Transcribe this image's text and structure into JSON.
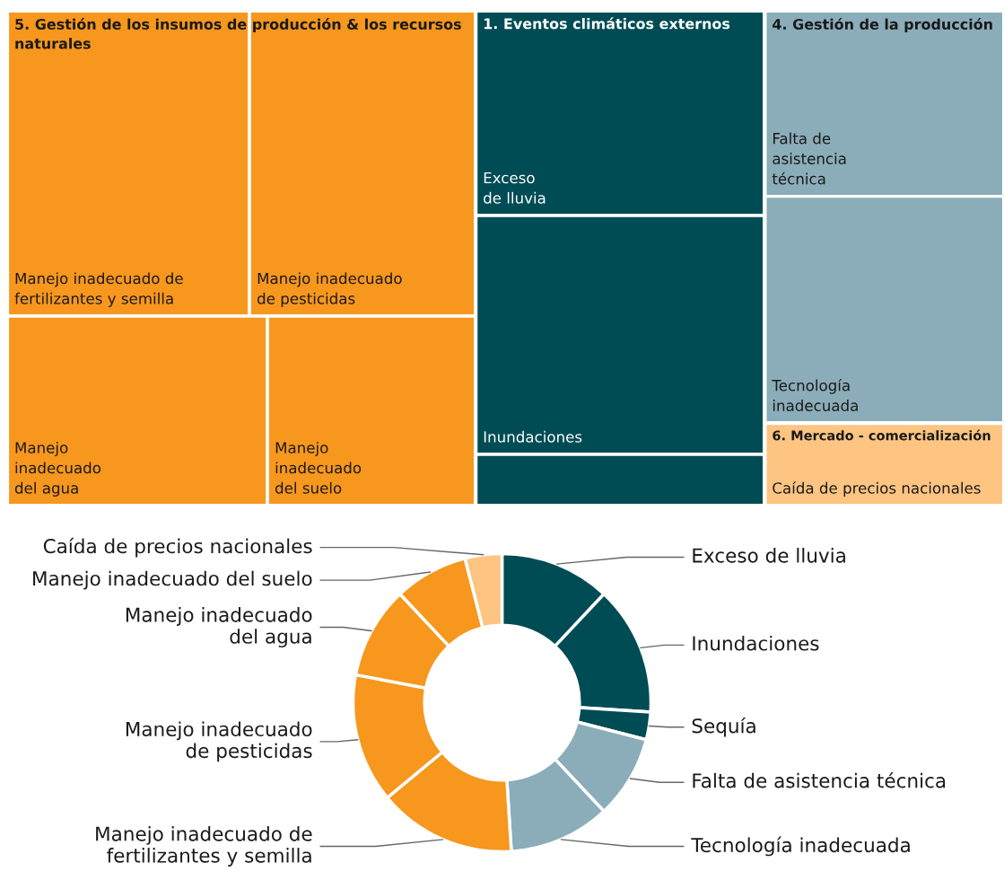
{
  "chart_data": [
    {
      "type": "other",
      "categories": [
        "Exceso\nde lluvia",
        "Inundaciones",
        null,
        "Falta de\nasistencia\ntécnica",
        "Tecnología\ninadecuada",
        "Manejo inadecuado de\nfertilizantes y semilla",
        "Manejo inadecuado\nde pesticidas",
        "Manejo\ninadecuado\ndel agua",
        "Manejo\ninadecuado\ndel suelo",
        "Caída de precios nacionales"
      ],
      "colors": [
        "#004c55",
        "#004c55",
        "#004c55",
        "#8aadb9",
        "#8aadb9",
        "#f7971e",
        "#f7971e",
        "#f7971e",
        "#f7971e",
        "#fdc482"
      ],
      "annotations": [
        "1. Eventos climáticos externos",
        "4. Gestión de la producción",
        "5. Gestión de los insumos de producción & los recursos\nnaturales",
        "6. Mercado - comercialización"
      ]
    },
    {
      "type": "donut",
      "categories": [
        "Exceso de lluvia",
        "Inundaciones",
        "Sequía",
        "Falta de asistencia técnica",
        "Tecnología inadecuada",
        "Manejo inadecuado de\nfertilizantes y semilla",
        "Manejo inadecuado\nde pesticidas",
        "Manejo inadecuado\ndel agua",
        "Manejo inadecuado del suelo",
        "Caída de precios nacionales"
      ],
      "values": [
        12,
        14,
        3,
        9,
        11,
        15,
        14,
        10,
        8,
        4
      ],
      "colors": [
        "#004c55",
        "#004c55",
        "#004c55",
        "#8aadb9",
        "#8aadb9",
        "#f7971e",
        "#f7971e",
        "#f7971e",
        "#f7971e",
        "#fdc482"
      ]
    }
  ]
}
